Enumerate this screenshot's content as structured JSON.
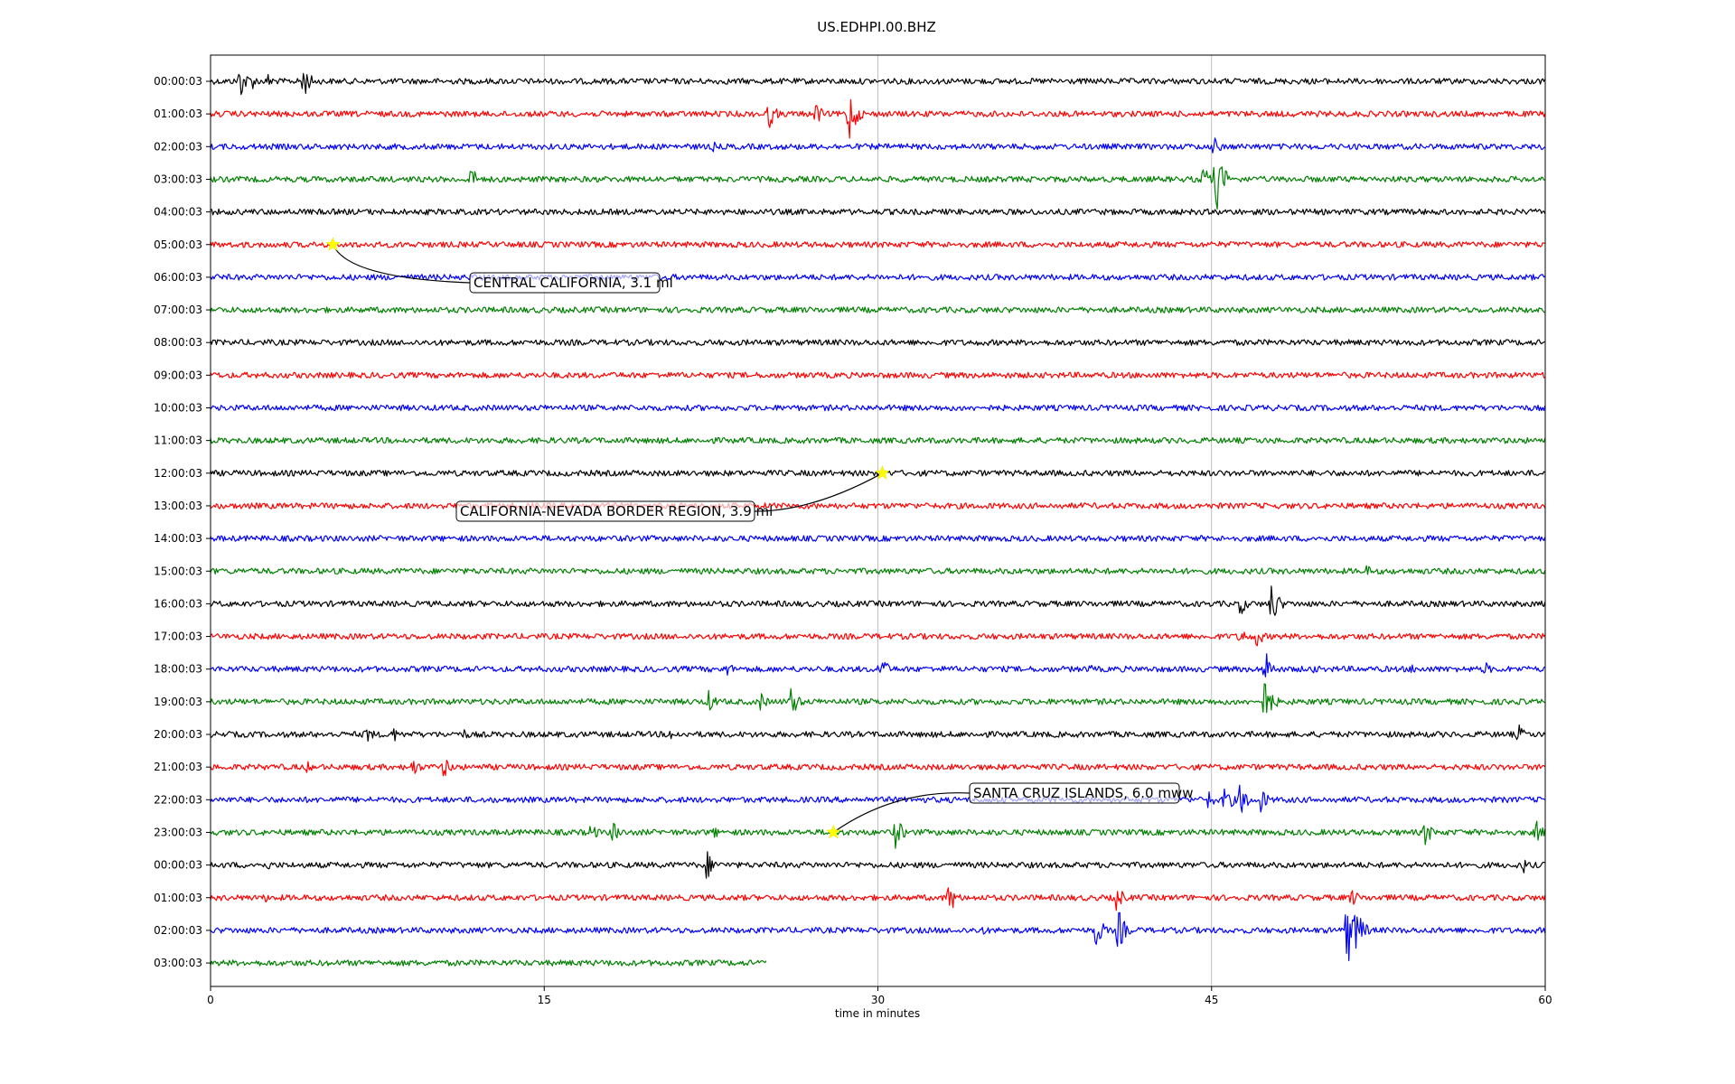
{
  "chart_data": {
    "type": "line",
    "title": "US.EDHPI.00.BHZ",
    "xlabel": "time in minutes",
    "ylabel": "",
    "xlim": [
      0,
      60
    ],
    "x_ticks": [
      "0",
      "15",
      "30",
      "45",
      "60"
    ],
    "grid": "vertical",
    "colors": [
      "#000000",
      "#ff0000",
      "#0000ff",
      "#008000"
    ],
    "rows": [
      {
        "label": "00:00:03",
        "end": 60,
        "events": [
          [
            1.3,
            22
          ],
          [
            1.8,
            12
          ],
          [
            2.6,
            10
          ],
          [
            4.1,
            26
          ]
        ]
      },
      {
        "label": "01:00:03",
        "end": 60,
        "events": [
          [
            25.1,
            18
          ],
          [
            27.2,
            14
          ],
          [
            28.7,
            34
          ]
        ]
      },
      {
        "label": "02:00:03",
        "end": 60,
        "events": [
          [
            22.6,
            6
          ],
          [
            45.1,
            12
          ]
        ]
      },
      {
        "label": "03:00:03",
        "end": 60,
        "events": [
          [
            11.7,
            16
          ],
          [
            44.6,
            18
          ],
          [
            45.2,
            40
          ]
        ]
      },
      {
        "label": "04:00:03",
        "end": 60,
        "events": []
      },
      {
        "label": "05:00:03",
        "end": 60,
        "events": []
      },
      {
        "label": "06:00:03",
        "end": 60,
        "events": []
      },
      {
        "label": "07:00:03",
        "end": 60,
        "events": []
      },
      {
        "label": "08:00:03",
        "end": 60,
        "events": []
      },
      {
        "label": "09:00:03",
        "end": 60,
        "events": []
      },
      {
        "label": "10:00:03",
        "end": 60,
        "events": []
      },
      {
        "label": "11:00:03",
        "end": 60,
        "events": []
      },
      {
        "label": "12:00:03",
        "end": 60,
        "events": []
      },
      {
        "label": "13:00:03",
        "end": 60,
        "events": []
      },
      {
        "label": "14:00:03",
        "end": 60,
        "events": []
      },
      {
        "label": "15:00:03",
        "end": 60,
        "events": [
          [
            52.0,
            8
          ]
        ]
      },
      {
        "label": "16:00:03",
        "end": 60,
        "events": [
          [
            46.3,
            14
          ],
          [
            47.7,
            26
          ]
        ]
      },
      {
        "label": "17:00:03",
        "end": 60,
        "events": [
          [
            46.3,
            12
          ],
          [
            47.0,
            14
          ]
        ]
      },
      {
        "label": "18:00:03",
        "end": 60,
        "events": [
          [
            23.2,
            10
          ],
          [
            30.1,
            18
          ],
          [
            39.5,
            6
          ],
          [
            47.4,
            24
          ],
          [
            49.5,
            7
          ],
          [
            54.0,
            7
          ],
          [
            57.3,
            9
          ]
        ]
      },
      {
        "label": "19:00:03",
        "end": 60,
        "events": [
          [
            22.4,
            14
          ],
          [
            24.7,
            12
          ],
          [
            26.1,
            20
          ],
          [
            47.4,
            30
          ]
        ]
      },
      {
        "label": "20:00:03",
        "end": 60,
        "events": [
          [
            7.0,
            12
          ],
          [
            8.2,
            10
          ],
          [
            11.4,
            7
          ],
          [
            20.6,
            9
          ],
          [
            58.8,
            12
          ]
        ]
      },
      {
        "label": "21:00:03",
        "end": 60,
        "events": [
          [
            4.3,
            8
          ],
          [
            9.1,
            12
          ],
          [
            10.5,
            14
          ]
        ]
      },
      {
        "label": "22:00:03",
        "end": 60,
        "events": [
          [
            44.8,
            14
          ],
          [
            45.6,
            20
          ],
          [
            46.3,
            22
          ],
          [
            47.2,
            16
          ]
        ]
      },
      {
        "label": "23:00:03",
        "end": 60,
        "events": [
          [
            7.3,
            6
          ],
          [
            17.1,
            12
          ],
          [
            18.1,
            14
          ],
          [
            22.6,
            8
          ],
          [
            30.8,
            20
          ],
          [
            54.6,
            16
          ],
          [
            59.6,
            14
          ]
        ]
      },
      {
        "label": "00:00:03",
        "end": 60,
        "events": [
          [
            2.6,
            6
          ],
          [
            22.3,
            18
          ],
          [
            59.0,
            10
          ]
        ]
      },
      {
        "label": "01:00:03",
        "end": 60,
        "events": [
          [
            2.5,
            6
          ],
          [
            33.2,
            20
          ],
          [
            40.7,
            18
          ],
          [
            51.3,
            12
          ]
        ]
      },
      {
        "label": "02:00:03",
        "end": 60,
        "events": [
          [
            34.6,
            8
          ],
          [
            39.8,
            22
          ],
          [
            40.8,
            26
          ],
          [
            51.1,
            46
          ],
          [
            51.5,
            30
          ]
        ]
      },
      {
        "label": "03:00:03",
        "end": 25,
        "events": []
      }
    ],
    "annotations": [
      {
        "text": "CENTRAL CALIFORNIA, 3.1 ml",
        "row": 5,
        "minute": 5.5
      },
      {
        "text": "CALIFORNIA-NEVADA BORDER REGION, 3.9 ml",
        "row": 12,
        "minute": 30.2
      },
      {
        "text": "SANTA CRUZ ISLANDS, 6.0 mww",
        "row": 23,
        "minute": 28.0
      }
    ]
  }
}
